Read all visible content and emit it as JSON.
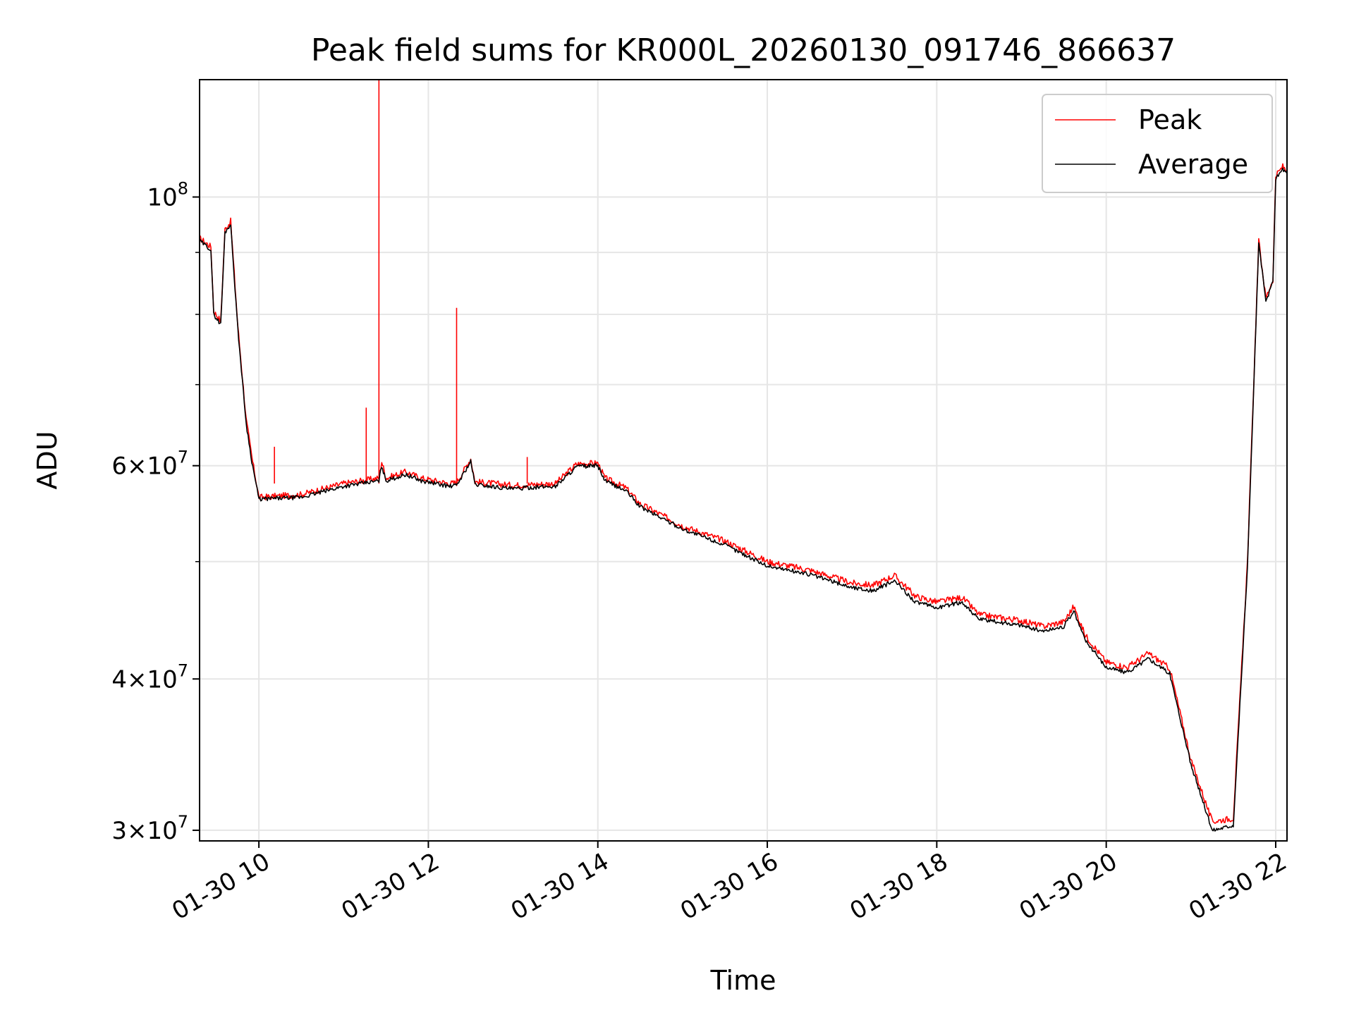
{
  "chart_data": {
    "type": "line",
    "title": "Peak field sums for KR000L_20260130_091746_866637",
    "xlabel": "Time",
    "ylabel": "ADU",
    "yscale": "log",
    "grid": true,
    "legend_position": "top-right",
    "x_ticks": [
      "01-30 10",
      "01-30 12",
      "01-30 14",
      "01-30 16",
      "01-30 18",
      "01-30 20",
      "01-30 22"
    ],
    "y_ticks": [
      {
        "value": 30000000,
        "mant": "3",
        "exp": "7"
      },
      {
        "value": 40000000,
        "mant": "4",
        "exp": "7"
      },
      {
        "value": 60000000,
        "mant": "6",
        "exp": "7"
      },
      {
        "value": 100000000,
        "mant": "",
        "exp": "8"
      }
    ],
    "xlim": [
      "2026-01-30 09:18",
      "2026-01-30 22:08"
    ],
    "ylim": [
      29400000,
      125000000
    ],
    "series": [
      {
        "name": "Peak",
        "color": "#ff0000",
        "points": [
          [
            "2026-01-30 09:18",
            92500000
          ],
          [
            "2026-01-30 09:26",
            91000000
          ],
          [
            "2026-01-30 09:28",
            80500000
          ],
          [
            "2026-01-30 09:33",
            79000000
          ],
          [
            "2026-01-30 09:36",
            94000000
          ],
          [
            "2026-01-30 09:40",
            95500000
          ],
          [
            "2026-01-30 09:45",
            78500000
          ],
          [
            "2026-01-30 09:51",
            65500000
          ],
          [
            "2026-01-30 09:55",
            61000000
          ],
          [
            "2026-01-30 10:00",
            56500000
          ],
          [
            "2026-01-30 10:30",
            56800000
          ],
          [
            "2026-01-30 11:00",
            58000000
          ],
          [
            "2026-01-30 11:25",
            58600000
          ],
          [
            "2026-01-30 11:27",
            60500000
          ],
          [
            "2026-01-30 11:30",
            58600000
          ],
          [
            "2026-01-30 11:44",
            59300000
          ],
          [
            "2026-01-30 11:55",
            58600000
          ],
          [
            "2026-01-30 12:15",
            58000000
          ],
          [
            "2026-01-30 12:20",
            58100000
          ],
          [
            "2026-01-30 12:30",
            60800000
          ],
          [
            "2026-01-30 12:33",
            58200000
          ],
          [
            "2026-01-30 13:00",
            57800000
          ],
          [
            "2026-01-30 13:15",
            57900000
          ],
          [
            "2026-01-30 13:30",
            58000000
          ],
          [
            "2026-01-30 13:45",
            60200000
          ],
          [
            "2026-01-30 14:00",
            60300000
          ],
          [
            "2026-01-30 14:05",
            58600000
          ],
          [
            "2026-01-30 14:20",
            57500000
          ],
          [
            "2026-01-30 14:30",
            55800000
          ],
          [
            "2026-01-30 15:00",
            53500000
          ],
          [
            "2026-01-30 15:30",
            52000000
          ],
          [
            "2026-01-30 16:00",
            50000000
          ],
          [
            "2026-01-30 16:30",
            49200000
          ],
          [
            "2026-01-30 17:00",
            48000000
          ],
          [
            "2026-01-30 17:15",
            47800000
          ],
          [
            "2026-01-30 17:30",
            48700000
          ],
          [
            "2026-01-30 17:45",
            46800000
          ],
          [
            "2026-01-30 18:00",
            46300000
          ],
          [
            "2026-01-30 18:18",
            46700000
          ],
          [
            "2026-01-30 18:30",
            45200000
          ],
          [
            "2026-01-30 19:00",
            44700000
          ],
          [
            "2026-01-30 19:15",
            44200000
          ],
          [
            "2026-01-30 19:30",
            44600000
          ],
          [
            "2026-01-30 19:37",
            45900000
          ],
          [
            "2026-01-30 19:45",
            43500000
          ],
          [
            "2026-01-30 20:00",
            41300000
          ],
          [
            "2026-01-30 20:15",
            40900000
          ],
          [
            "2026-01-30 20:30",
            42000000
          ],
          [
            "2026-01-30 20:45",
            40800000
          ],
          [
            "2026-01-30 21:00",
            34300000
          ],
          [
            "2026-01-30 21:15",
            30500000
          ],
          [
            "2026-01-30 21:30",
            30700000
          ],
          [
            "2026-01-30 21:40",
            50000000
          ],
          [
            "2026-01-30 21:48",
            92000000
          ],
          [
            "2026-01-30 21:53",
            82500000
          ],
          [
            "2026-01-30 21:58",
            85500000
          ],
          [
            "2026-01-30 22:00",
            104000000
          ],
          [
            "2026-01-30 22:05",
            106000000
          ],
          [
            "2026-01-30 22:08",
            105000000
          ]
        ],
        "spikes": [
          [
            "2026-01-30 10:11",
            62200000
          ],
          [
            "2026-01-30 11:16",
            67000000
          ],
          [
            "2026-01-30 11:25",
            125000000
          ],
          [
            "2026-01-30 12:20",
            81000000
          ],
          [
            "2026-01-30 13:10",
            61000000
          ]
        ]
      },
      {
        "name": "Average",
        "color": "#000000",
        "points": [
          [
            "2026-01-30 09:18",
            92000000
          ],
          [
            "2026-01-30 09:26",
            90500000
          ],
          [
            "2026-01-30 09:28",
            80000000
          ],
          [
            "2026-01-30 09:33",
            78500000
          ],
          [
            "2026-01-30 09:36",
            93500000
          ],
          [
            "2026-01-30 09:40",
            95000000
          ],
          [
            "2026-01-30 09:45",
            78000000
          ],
          [
            "2026-01-30 09:51",
            65000000
          ],
          [
            "2026-01-30 09:55",
            60500000
          ],
          [
            "2026-01-30 10:00",
            56300000
          ],
          [
            "2026-01-30 10:30",
            56500000
          ],
          [
            "2026-01-30 11:00",
            57700000
          ],
          [
            "2026-01-30 11:25",
            58300000
          ],
          [
            "2026-01-30 11:27",
            60000000
          ],
          [
            "2026-01-30 11:30",
            58300000
          ],
          [
            "2026-01-30 11:44",
            59000000
          ],
          [
            "2026-01-30 11:55",
            58300000
          ],
          [
            "2026-01-30 12:15",
            57700000
          ],
          [
            "2026-01-30 12:20",
            57800000
          ],
          [
            "2026-01-30 12:30",
            60500000
          ],
          [
            "2026-01-30 12:33",
            57900000
          ],
          [
            "2026-01-30 13:00",
            57400000
          ],
          [
            "2026-01-30 13:15",
            57600000
          ],
          [
            "2026-01-30 13:30",
            57700000
          ],
          [
            "2026-01-30 13:45",
            59900000
          ],
          [
            "2026-01-30 14:00",
            60000000
          ],
          [
            "2026-01-30 14:05",
            58300000
          ],
          [
            "2026-01-30 14:20",
            57200000
          ],
          [
            "2026-01-30 14:30",
            55500000
          ],
          [
            "2026-01-30 15:00",
            53200000
          ],
          [
            "2026-01-30 15:30",
            51600000
          ],
          [
            "2026-01-30 16:00",
            49600000
          ],
          [
            "2026-01-30 16:30",
            48800000
          ],
          [
            "2026-01-30 17:00",
            47600000
          ],
          [
            "2026-01-30 17:15",
            47300000
          ],
          [
            "2026-01-30 17:30",
            48200000
          ],
          [
            "2026-01-30 17:45",
            46300000
          ],
          [
            "2026-01-30 18:00",
            45800000
          ],
          [
            "2026-01-30 18:18",
            46300000
          ],
          [
            "2026-01-30 18:30",
            44800000
          ],
          [
            "2026-01-30 19:00",
            44300000
          ],
          [
            "2026-01-30 19:15",
            43800000
          ],
          [
            "2026-01-30 19:30",
            44200000
          ],
          [
            "2026-01-30 19:37",
            45500000
          ],
          [
            "2026-01-30 19:45",
            43100000
          ],
          [
            "2026-01-30 20:00",
            40900000
          ],
          [
            "2026-01-30 20:15",
            40500000
          ],
          [
            "2026-01-30 20:30",
            41600000
          ],
          [
            "2026-01-30 20:45",
            40400000
          ],
          [
            "2026-01-30 21:00",
            34000000
          ],
          [
            "2026-01-30 21:15",
            30000000
          ],
          [
            "2026-01-30 21:30",
            30300000
          ],
          [
            "2026-01-30 21:40",
            49500000
          ],
          [
            "2026-01-30 21:48",
            91500000
          ],
          [
            "2026-01-30 21:53",
            82000000
          ],
          [
            "2026-01-30 21:58",
            85000000
          ],
          [
            "2026-01-30 22:00",
            103500000
          ],
          [
            "2026-01-30 22:05",
            105500000
          ],
          [
            "2026-01-30 22:08",
            104500000
          ]
        ]
      }
    ]
  }
}
